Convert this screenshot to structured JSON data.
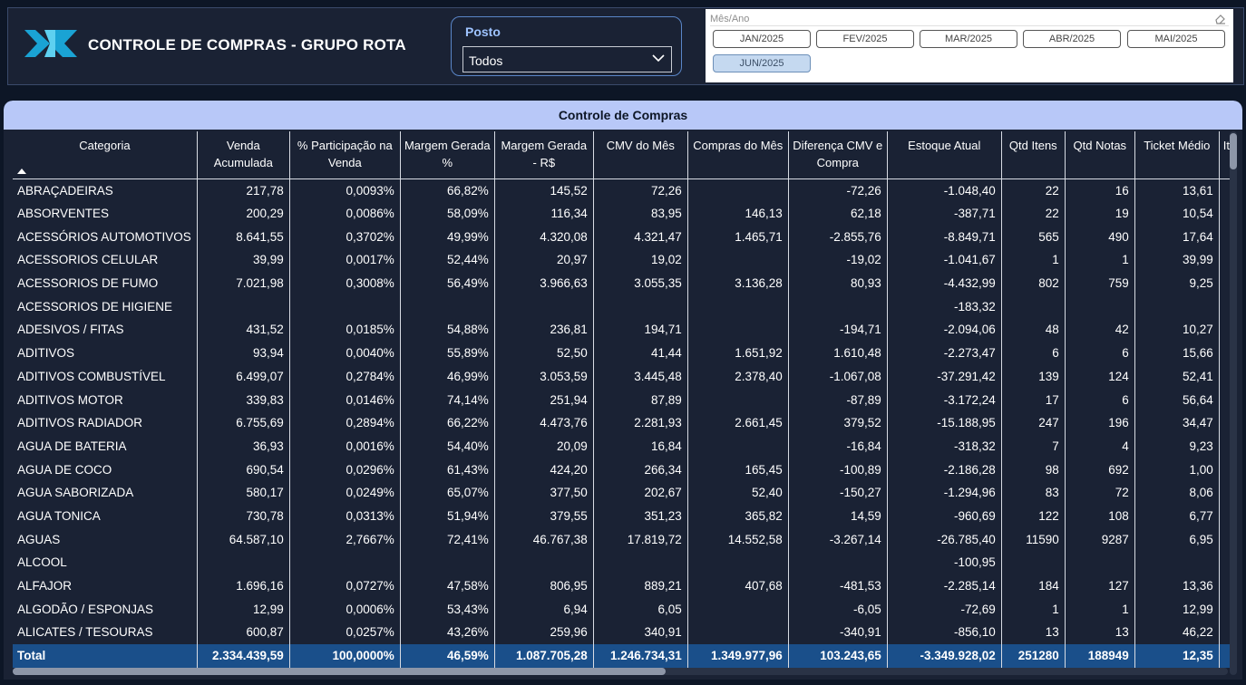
{
  "header": {
    "title": "CONTROLE DE COMPRAS - GRUPO ROTA",
    "logo_icon": "logo-icon"
  },
  "posto": {
    "label": "Posto",
    "value": "Todos"
  },
  "month_slicer": {
    "label": "Mês/Ano",
    "months": [
      "JAN/2025",
      "FEV/2025",
      "MAR/2025",
      "ABR/2025",
      "MAI/2025",
      "JUN/2025"
    ],
    "selected": "JUN/2025"
  },
  "table": {
    "title": "Controle de Compras",
    "columns": [
      "Categoria",
      "Venda Acumulada",
      "% Participação na Venda",
      "Margem Gerada %",
      "Margem Gerada - R$",
      "CMV do Mês",
      "Compras do Mês",
      "Diferença CMV e Compra",
      "Estoque Atual",
      "Qtd Itens",
      "Qtd Notas",
      "Ticket Médio",
      "It"
    ],
    "rows": [
      [
        "ABRAÇADEIRAS",
        "217,78",
        "0,0093%",
        "66,82%",
        "145,52",
        "72,26",
        "",
        "-72,26",
        "-1.048,40",
        "22",
        "16",
        "13,61",
        ""
      ],
      [
        "ABSORVENTES",
        "200,29",
        "0,0086%",
        "58,09%",
        "116,34",
        "83,95",
        "146,13",
        "62,18",
        "-387,71",
        "22",
        "19",
        "10,54",
        ""
      ],
      [
        "ACESSÓRIOS AUTOMOTIVOS",
        "8.641,55",
        "0,3702%",
        "49,99%",
        "4.320,08",
        "4.321,47",
        "1.465,71",
        "-2.855,76",
        "-8.849,71",
        "565",
        "490",
        "17,64",
        ""
      ],
      [
        "ACESSORIOS CELULAR",
        "39,99",
        "0,0017%",
        "52,44%",
        "20,97",
        "19,02",
        "",
        "-19,02",
        "-1.041,67",
        "1",
        "1",
        "39,99",
        ""
      ],
      [
        "ACESSORIOS DE FUMO",
        "7.021,98",
        "0,3008%",
        "56,49%",
        "3.966,63",
        "3.055,35",
        "3.136,28",
        "80,93",
        "-4.432,99",
        "802",
        "759",
        "9,25",
        ""
      ],
      [
        "ACESSORIOS DE HIGIENE",
        "",
        "",
        "",
        "",
        "",
        "",
        "",
        "-183,32",
        "",
        "",
        "",
        ""
      ],
      [
        "ADESIVOS / FITAS",
        "431,52",
        "0,0185%",
        "54,88%",
        "236,81",
        "194,71",
        "",
        "-194,71",
        "-2.094,06",
        "48",
        "42",
        "10,27",
        ""
      ],
      [
        "ADITIVOS",
        "93,94",
        "0,0040%",
        "55,89%",
        "52,50",
        "41,44",
        "1.651,92",
        "1.610,48",
        "-2.273,47",
        "6",
        "6",
        "15,66",
        ""
      ],
      [
        "ADITIVOS COMBUSTÍVEL",
        "6.499,07",
        "0,2784%",
        "46,99%",
        "3.053,59",
        "3.445,48",
        "2.378,40",
        "-1.067,08",
        "-37.291,42",
        "139",
        "124",
        "52,41",
        ""
      ],
      [
        "ADITIVOS MOTOR",
        "339,83",
        "0,0146%",
        "74,14%",
        "251,94",
        "87,89",
        "",
        "-87,89",
        "-3.172,24",
        "17",
        "6",
        "56,64",
        ""
      ],
      [
        "ADITIVOS RADIADOR",
        "6.755,69",
        "0,2894%",
        "66,22%",
        "4.473,76",
        "2.281,93",
        "2.661,45",
        "379,52",
        "-15.188,95",
        "247",
        "196",
        "34,47",
        ""
      ],
      [
        "AGUA DE BATERIA",
        "36,93",
        "0,0016%",
        "54,40%",
        "20,09",
        "16,84",
        "",
        "-16,84",
        "-318,32",
        "7",
        "4",
        "9,23",
        ""
      ],
      [
        "AGUA DE COCO",
        "690,54",
        "0,0296%",
        "61,43%",
        "424,20",
        "266,34",
        "165,45",
        "-100,89",
        "-2.186,28",
        "98",
        "692",
        "1,00",
        ""
      ],
      [
        "AGUA SABORIZADA",
        "580,17",
        "0,0249%",
        "65,07%",
        "377,50",
        "202,67",
        "52,40",
        "-150,27",
        "-1.294,96",
        "83",
        "72",
        "8,06",
        ""
      ],
      [
        "AGUA TONICA",
        "730,78",
        "0,0313%",
        "51,94%",
        "379,55",
        "351,23",
        "365,82",
        "14,59",
        "-960,69",
        "122",
        "108",
        "6,77",
        ""
      ],
      [
        "AGUAS",
        "64.587,10",
        "2,7667%",
        "72,41%",
        "46.767,38",
        "17.819,72",
        "14.552,58",
        "-3.267,14",
        "-26.785,40",
        "11590",
        "9287",
        "6,95",
        ""
      ],
      [
        "ALCOOL",
        "",
        "",
        "",
        "",
        "",
        "",
        "",
        "-100,95",
        "",
        "",
        "",
        ""
      ],
      [
        "ALFAJOR",
        "1.696,16",
        "0,0727%",
        "47,58%",
        "806,95",
        "889,21",
        "407,68",
        "-481,53",
        "-2.285,14",
        "184",
        "127",
        "13,36",
        ""
      ],
      [
        "ALGODÃO / ESPONJAS",
        "12,99",
        "0,0006%",
        "53,43%",
        "6,94",
        "6,05",
        "",
        "-6,05",
        "-72,69",
        "1",
        "1",
        "12,99",
        ""
      ],
      [
        "ALICATES / TESOURAS",
        "600,87",
        "0,0257%",
        "43,26%",
        "259,96",
        "340,91",
        "",
        "-340,91",
        "-856,10",
        "13",
        "13",
        "46,22",
        ""
      ]
    ],
    "total": [
      "Total",
      "2.334.439,59",
      "100,0000%",
      "46,59%",
      "1.087.705,28",
      "1.246.734,31",
      "1.349.977,96",
      "103.243,65",
      "-3.349.928,02",
      "251280",
      "188949",
      "12,35",
      ""
    ]
  }
}
